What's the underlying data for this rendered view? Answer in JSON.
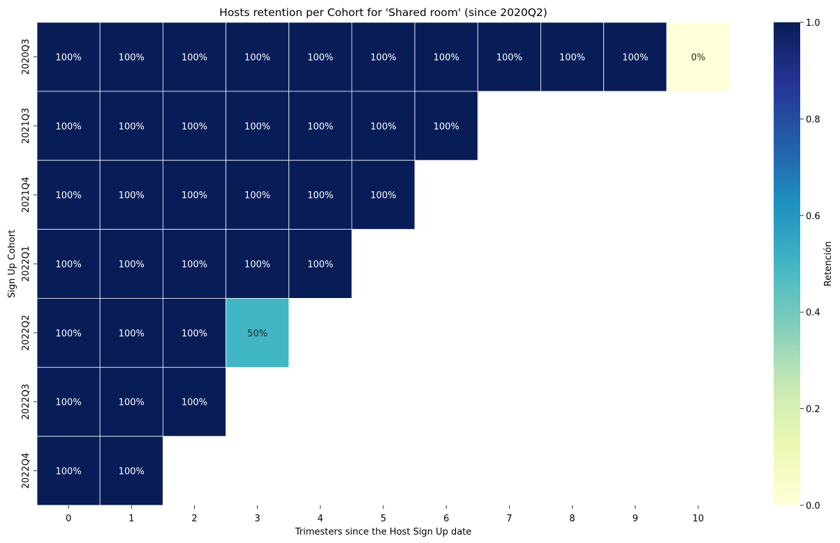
{
  "chart_data": {
    "type": "heatmap",
    "title": "Hosts retention per Cohort for 'Shared room' (since 2020Q2)",
    "xlabel": "Trimesters since the Host Sign Up date",
    "ylabel": "Sign Up Cohort",
    "x_categories": [
      "0",
      "1",
      "2",
      "3",
      "4",
      "5",
      "6",
      "7",
      "8",
      "9",
      "10"
    ],
    "y_categories": [
      "2020Q3",
      "2021Q3",
      "2021Q4",
      "2022Q1",
      "2022Q2",
      "2022Q3",
      "2022Q4"
    ],
    "values": [
      [
        1,
        1,
        1,
        1,
        1,
        1,
        1,
        1,
        1,
        1,
        0
      ],
      [
        1,
        1,
        1,
        1,
        1,
        1,
        1,
        null,
        null,
        null,
        null
      ],
      [
        1,
        1,
        1,
        1,
        1,
        1,
        null,
        null,
        null,
        null,
        null
      ],
      [
        1,
        1,
        1,
        1,
        1,
        null,
        null,
        null,
        null,
        null,
        null
      ],
      [
        1,
        1,
        1,
        0.5,
        null,
        null,
        null,
        null,
        null,
        null,
        null
      ],
      [
        1,
        1,
        1,
        null,
        null,
        null,
        null,
        null,
        null,
        null,
        null
      ],
      [
        1,
        1,
        null,
        null,
        null,
        null,
        null,
        null,
        null,
        null,
        null
      ]
    ],
    "colorbar": {
      "label": "Retención",
      "ticks": [
        "0.0",
        "0.2",
        "0.4",
        "0.6",
        "0.8",
        "1.0"
      ],
      "range": [
        0,
        1
      ],
      "colormap": "YlGnBu"
    },
    "annotation_format": "percent",
    "grid": false
  }
}
